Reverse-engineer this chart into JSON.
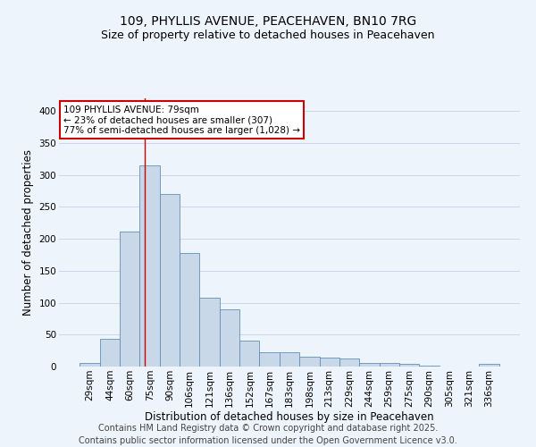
{
  "title_line1": "109, PHYLLIS AVENUE, PEACEHAVEN, BN10 7RG",
  "title_line2": "Size of property relative to detached houses in Peacehaven",
  "xlabel": "Distribution of detached houses by size in Peacehaven",
  "ylabel": "Number of detached properties",
  "categories": [
    "29sqm",
    "44sqm",
    "60sqm",
    "75sqm",
    "90sqm",
    "106sqm",
    "121sqm",
    "136sqm",
    "152sqm",
    "167sqm",
    "183sqm",
    "198sqm",
    "213sqm",
    "229sqm",
    "244sqm",
    "259sqm",
    "275sqm",
    "290sqm",
    "305sqm",
    "321sqm",
    "336sqm"
  ],
  "values": [
    5,
    44,
    212,
    315,
    270,
    178,
    108,
    90,
    40,
    23,
    23,
    16,
    14,
    12,
    6,
    6,
    4,
    2,
    0,
    0,
    4
  ],
  "bar_color": "#c8d8e8",
  "bar_edge_color": "#6090b8",
  "red_line_x": 3.27,
  "annotation_text": "109 PHYLLIS AVENUE: 79sqm\n← 23% of detached houses are smaller (307)\n77% of semi-detached houses are larger (1,028) →",
  "annotation_box_color": "#ffffff",
  "annotation_box_edge": "#cc0000",
  "ylim": [
    0,
    420
  ],
  "grid_color": "#c8d8f0",
  "bg_color": "#eef4fb",
  "footer_line1": "Contains HM Land Registry data © Crown copyright and database right 2025.",
  "footer_line2": "Contains public sector information licensed under the Open Government Licence v3.0.",
  "title_fontsize": 10,
  "subtitle_fontsize": 9,
  "label_fontsize": 8.5,
  "tick_fontsize": 7.5,
  "footer_fontsize": 7
}
